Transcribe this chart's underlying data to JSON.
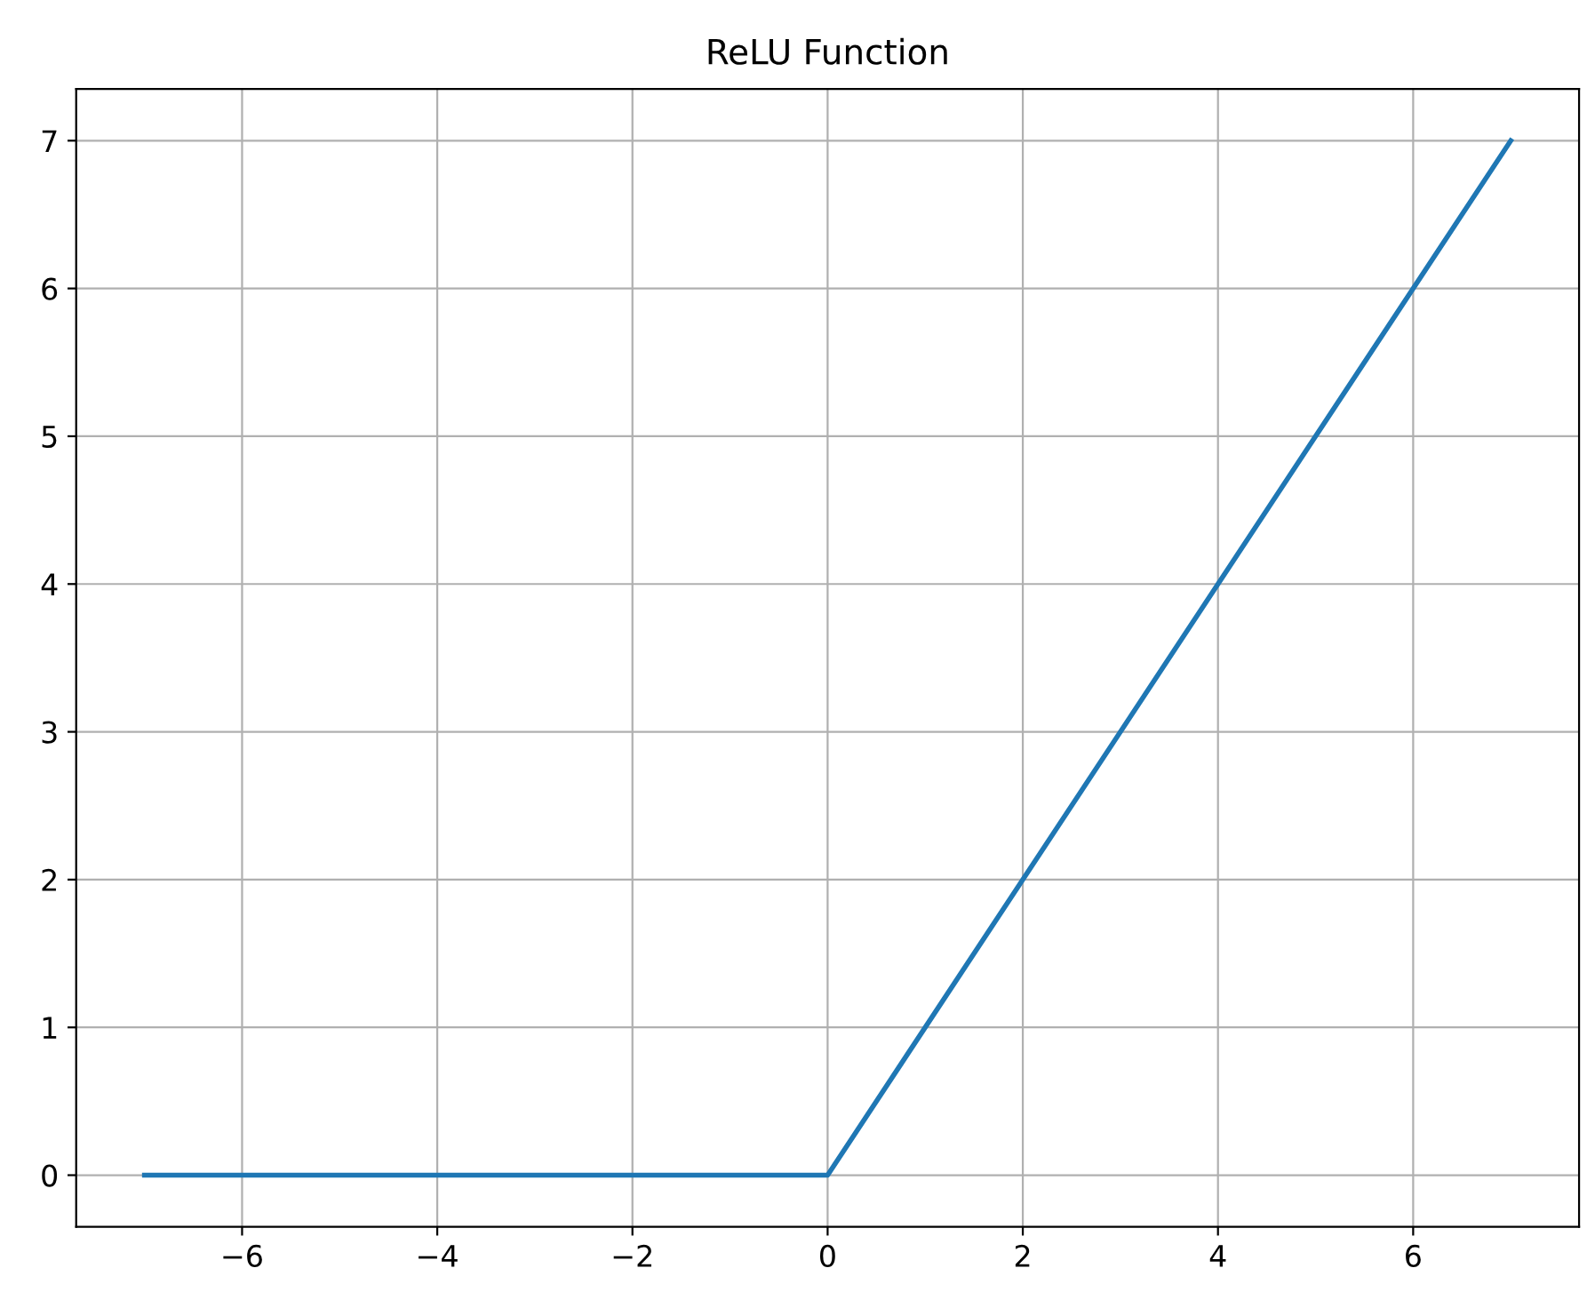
{
  "chart_data": {
    "type": "line",
    "title": "ReLU Function",
    "x": [
      -7,
      0,
      7
    ],
    "series": [
      {
        "color": "#1f77b4",
        "values": [
          0,
          0,
          7
        ]
      }
    ],
    "xlim": [
      -7.7,
      7.7
    ],
    "ylim": [
      -0.35,
      7.35
    ],
    "xticks": [
      -6,
      -4,
      -2,
      0,
      2,
      4,
      6
    ],
    "yticks": [
      0,
      1,
      2,
      3,
      4,
      5,
      6,
      7
    ],
    "grid": true
  }
}
